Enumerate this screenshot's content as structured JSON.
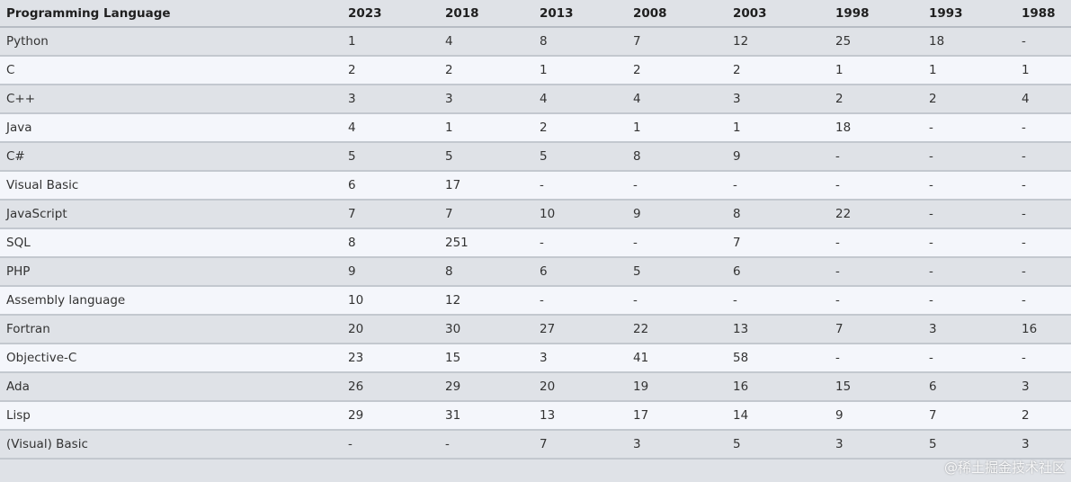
{
  "table": {
    "headers": [
      "Programming Language",
      "2023",
      "2018",
      "2013",
      "2008",
      "2003",
      "1998",
      "1993",
      "1988"
    ],
    "rows": [
      [
        "Python",
        "1",
        "4",
        "8",
        "7",
        "12",
        "25",
        "18",
        "-"
      ],
      [
        "C",
        "2",
        "2",
        "1",
        "2",
        "2",
        "1",
        "1",
        "1"
      ],
      [
        "C++",
        "3",
        "3",
        "4",
        "4",
        "3",
        "2",
        "2",
        "4"
      ],
      [
        "Java",
        "4",
        "1",
        "2",
        "1",
        "1",
        "18",
        "-",
        "-"
      ],
      [
        "C#",
        "5",
        "5",
        "5",
        "8",
        "9",
        "-",
        "-",
        "-"
      ],
      [
        "Visual Basic",
        "6",
        "17",
        "-",
        "-",
        "-",
        "-",
        "-",
        "-"
      ],
      [
        "JavaScript",
        "7",
        "7",
        "10",
        "9",
        "8",
        "22",
        "-",
        "-"
      ],
      [
        "SQL",
        "8",
        "251",
        "-",
        "-",
        "7",
        "-",
        "-",
        "-"
      ],
      [
        "PHP",
        "9",
        "8",
        "6",
        "5",
        "6",
        "-",
        "-",
        "-"
      ],
      [
        "Assembly language",
        "10",
        "12",
        "-",
        "-",
        "-",
        "-",
        "-",
        "-"
      ],
      [
        "Fortran",
        "20",
        "30",
        "27",
        "22",
        "13",
        "7",
        "3",
        "16"
      ],
      [
        "Objective-C",
        "23",
        "15",
        "3",
        "41",
        "58",
        "-",
        "-",
        "-"
      ],
      [
        "Ada",
        "26",
        "29",
        "20",
        "19",
        "16",
        "15",
        "6",
        "3"
      ],
      [
        "Lisp",
        "29",
        "31",
        "13",
        "17",
        "14",
        "9",
        "7",
        "2"
      ],
      [
        "(Visual) Basic",
        "-",
        "-",
        "7",
        "3",
        "5",
        "3",
        "5",
        "3"
      ]
    ]
  },
  "watermark": "@稀土掘金技术社区"
}
